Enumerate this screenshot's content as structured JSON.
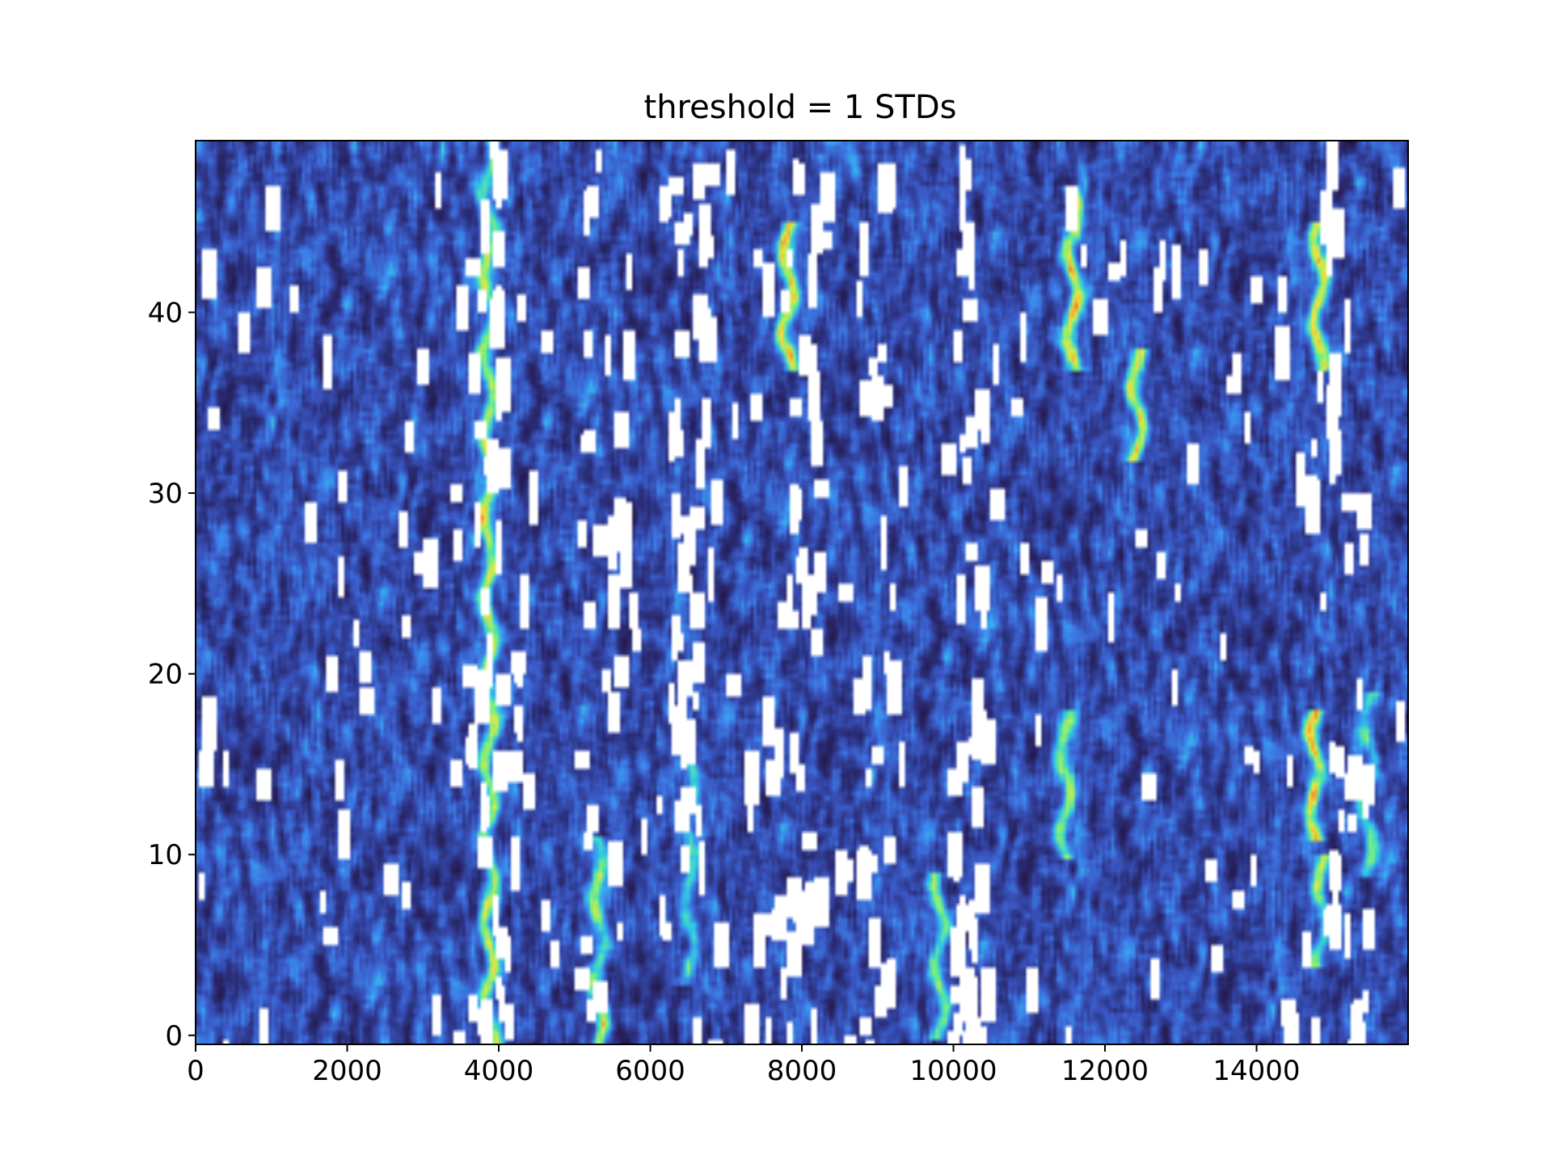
{
  "chart_data": {
    "type": "heatmap",
    "title": "threshold = 1 STDs",
    "xlabel": "",
    "ylabel": "",
    "xlim": [
      0,
      16000
    ],
    "ylim": [
      -0.5,
      49.5
    ],
    "x_ticks": [
      0,
      2000,
      4000,
      6000,
      8000,
      10000,
      12000,
      14000
    ],
    "y_ticks": [
      0,
      10,
      20,
      30,
      40
    ],
    "colormap": [
      "#23123d",
      "#2b2f7a",
      "#3a58c4",
      "#3b8cf0",
      "#2fd0e0",
      "#7ef07a",
      "#f5e43c",
      "#f07a2a",
      "#c81e1e"
    ],
    "masked_color": "#ffffff",
    "hot_ridges": [
      {
        "x": 3850,
        "y_from": 0,
        "y_to": 49,
        "intensity": 0.8
      },
      {
        "x": 5300,
        "y_from": 0,
        "y_to": 10,
        "intensity": 0.7
      },
      {
        "x": 6500,
        "y_from": 4,
        "y_to": 14,
        "intensity": 0.55
      },
      {
        "x": 7800,
        "y_from": 38,
        "y_to": 44,
        "intensity": 0.95
      },
      {
        "x": 9800,
        "y_from": 1,
        "y_to": 8,
        "intensity": 0.75
      },
      {
        "x": 11550,
        "y_from": 38,
        "y_to": 46,
        "intensity": 0.95
      },
      {
        "x": 11450,
        "y_from": 11,
        "y_to": 17,
        "intensity": 0.75
      },
      {
        "x": 12400,
        "y_from": 33,
        "y_to": 37,
        "intensity": 0.95
      },
      {
        "x": 14750,
        "y_from": 12,
        "y_to": 17,
        "intensity": 0.95
      },
      {
        "x": 14800,
        "y_from": 38,
        "y_to": 44,
        "intensity": 0.95
      },
      {
        "x": 14850,
        "y_from": 5,
        "y_to": 9,
        "intensity": 0.8
      },
      {
        "x": 15450,
        "y_from": 10,
        "y_to": 18,
        "intensity": 0.6
      }
    ],
    "masked_columns_x": [
      3850,
      4000,
      5300,
      6400,
      6600,
      7800,
      7900,
      8950,
      10050,
      10150,
      14800,
      15200
    ]
  }
}
